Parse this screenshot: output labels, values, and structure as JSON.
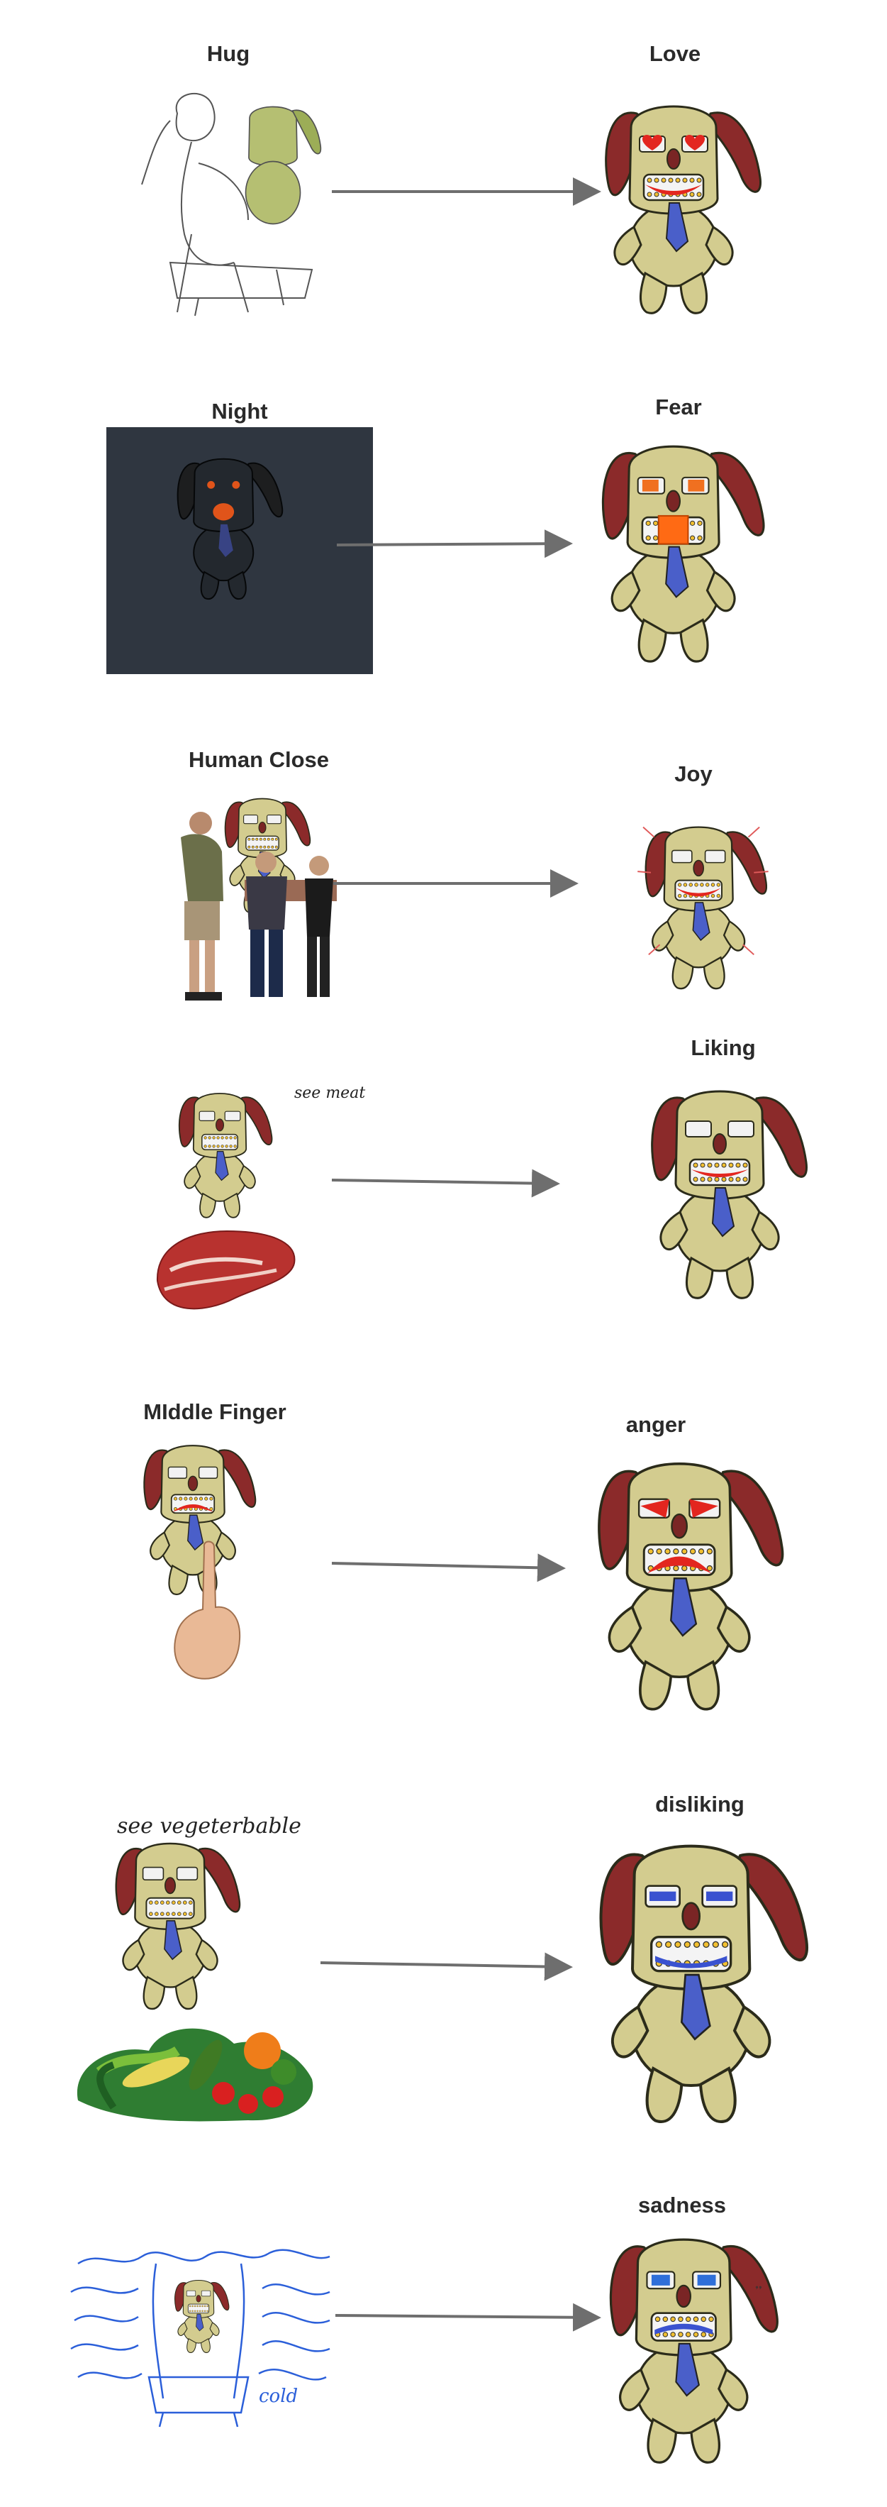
{
  "rows": [
    {
      "stimulus": "Hug",
      "emotion": "Love"
    },
    {
      "stimulus": "Night",
      "emotion": "Fear"
    },
    {
      "stimulus": "Human Close",
      "emotion": "Joy"
    },
    {
      "stimulus": "",
      "emotion": "Liking",
      "note": "see meat"
    },
    {
      "stimulus": "MIddle Finger",
      "emotion": "anger"
    },
    {
      "stimulus": "",
      "emotion": "disliking",
      "note": "see vegeterbable"
    },
    {
      "stimulus": "",
      "emotion": "sadness",
      "note": "cold"
    }
  ],
  "colors": {
    "plush_body": "#d3cc8f",
    "plush_outline": "#2b2b1a",
    "ear": "#8b2a2a",
    "tie": "#4a5fc9",
    "arrow": "#6e6e6e",
    "night_bg": "#2f3640",
    "cold_scribble": "#2b5fd9"
  }
}
